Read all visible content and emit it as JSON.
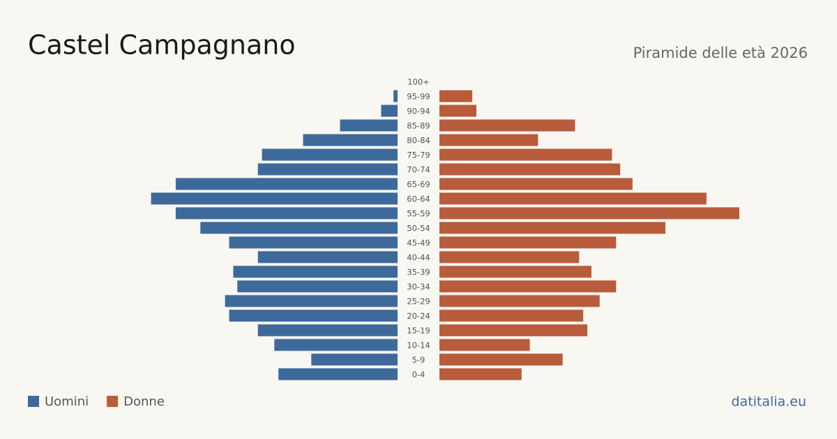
{
  "chart_data": {
    "type": "pyramid",
    "title": "Castel Campagnano",
    "subtitle": "Piramide delle età 2026",
    "source": "datitalia.eu",
    "categories": [
      "100+",
      "95-99",
      "90-94",
      "85-89",
      "80-84",
      "75-79",
      "70-74",
      "65-69",
      "60-64",
      "55-59",
      "50-54",
      "45-49",
      "40-44",
      "35-39",
      "30-34",
      "25-29",
      "20-24",
      "15-19",
      "10-14",
      "5-9",
      "0-4"
    ],
    "series": [
      {
        "name": "Uomini",
        "color": "#3d6a9b",
        "values": [
          0,
          1,
          4,
          14,
          23,
          33,
          34,
          54,
          60,
          54,
          48,
          41,
          34,
          40,
          39,
          42,
          41,
          34,
          30,
          21,
          29
        ]
      },
      {
        "name": "Donne",
        "color": "#b85c3c",
        "values": [
          0,
          8,
          9,
          33,
          24,
          42,
          44,
          47,
          65,
          73,
          55,
          43,
          34,
          37,
          43,
          39,
          35,
          36,
          22,
          30,
          20
        ]
      }
    ]
  }
}
